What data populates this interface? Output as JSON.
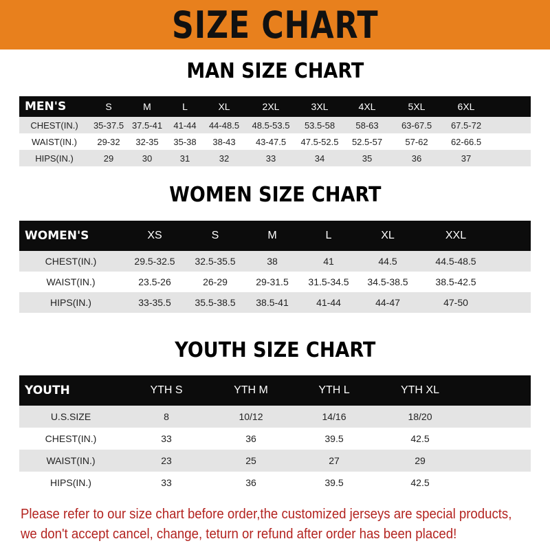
{
  "banner": {
    "title": "SIZE CHART",
    "color": "#e8801d"
  },
  "men": {
    "title": "MAN SIZE CHART",
    "header": [
      "MEN'S",
      "S",
      "M",
      "L",
      "XL",
      "2XL",
      "3XL",
      "4XL",
      "5XL",
      "6XL"
    ],
    "rows": [
      [
        "CHEST(IN.)",
        "35-37.5",
        "37.5-41",
        "41-44",
        "44-48.5",
        "48.5-53.5",
        "53.5-58",
        "58-63",
        "63-67.5",
        "67.5-72"
      ],
      [
        "WAIST(IN.)",
        "29-32",
        "32-35",
        "35-38",
        "38-43",
        "43-47.5",
        "47.5-52.5",
        "52.5-57",
        "57-62",
        "62-66.5"
      ],
      [
        "HIPS(IN.)",
        "29",
        "30",
        "31",
        "32",
        "33",
        "34",
        "35",
        "36",
        "37"
      ]
    ]
  },
  "women": {
    "title": "WOMEN SIZE CHART",
    "header": [
      "WOMEN'S",
      "XS",
      "S",
      "M",
      "L",
      "XL",
      "XXL"
    ],
    "rows": [
      [
        "CHEST(IN.)",
        "29.5-32.5",
        "32.5-35.5",
        "38",
        "41",
        "44.5",
        "44.5-48.5"
      ],
      [
        "WAIST(IN.)",
        "23.5-26",
        "26-29",
        "29-31.5",
        "31.5-34.5",
        "34.5-38.5",
        "38.5-42.5"
      ],
      [
        "HIPS(IN.)",
        "33-35.5",
        "35.5-38.5",
        "38.5-41",
        "41-44",
        "44-47",
        "47-50"
      ]
    ]
  },
  "youth": {
    "title": "YOUTH SIZE CHART",
    "header": [
      "YOUTH",
      "YTH S",
      "YTH M",
      "YTH L",
      "YTH XL"
    ],
    "rows": [
      [
        "U.S.SIZE",
        "8",
        "10/12",
        "14/16",
        "18/20"
      ],
      [
        "CHEST(IN.)",
        "33",
        "36",
        "39.5",
        "42.5"
      ],
      [
        "WAIST(IN.)",
        "23",
        "25",
        "27",
        "29"
      ],
      [
        "HIPS(IN.)",
        "33",
        "36",
        "39.5",
        "42.5"
      ]
    ]
  },
  "footer": {
    "line1": "Please refer to our size chart before order,the customized jerseys are special products,",
    "line2": "we don't accept cancel, change, teturn or refund after order has been placed!",
    "color": "#b3231f"
  }
}
